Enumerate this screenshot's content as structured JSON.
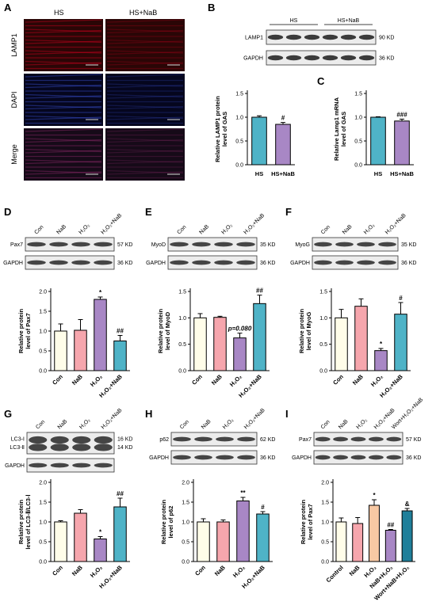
{
  "panels": {
    "A": "A",
    "B": "B",
    "C": "C",
    "D": "D",
    "E": "E",
    "F": "F",
    "G": "G",
    "H": "H",
    "I": "I"
  },
  "colors": {
    "cream": "#fffde9",
    "pink": "#f6a6ad",
    "purple": "#a887c5",
    "teal": "#4fb3c7",
    "lightorange": "#f8c9a4",
    "dteal": "#1f7f9a"
  },
  "micro": {
    "col_headers": [
      "HS",
      "HS+NaB"
    ],
    "row_labels": [
      "LAMP1",
      "DAPI",
      "Merge"
    ]
  },
  "blots": {
    "B": {
      "groups": [
        "HS",
        "HS+NaB"
      ],
      "rows": [
        "LAMP1",
        "GAPDH"
      ],
      "kd": [
        "90 KD",
        "36 KD"
      ]
    },
    "D": {
      "lanes": [
        "Con",
        "NaB",
        "H₂O₂",
        "H₂O₂+NaB"
      ],
      "rows": [
        "Pax7",
        "GAPDH"
      ],
      "kd": [
        "57 KD",
        "36 KD"
      ]
    },
    "E": {
      "lanes": [
        "Con",
        "NaB",
        "H₂O₂",
        "H₂O₂+NaB"
      ],
      "rows": [
        "MyoD",
        "GAPDH"
      ],
      "kd": [
        "35 KD",
        "36 KD"
      ]
    },
    "F": {
      "lanes": [
        "Con",
        "NaB",
        "H₂O₂",
        "H₂O₂+NaB"
      ],
      "rows": [
        "MyoG",
        "GAPDH"
      ],
      "kd": [
        "35 KD",
        "36 KD"
      ]
    },
    "G": {
      "lanes": [
        "Con",
        "NaB",
        "H₂O₂",
        "H₂O₂+NaB"
      ],
      "rows": [
        "LC3-Ⅰ",
        "LC3-Ⅱ",
        "GAPDH"
      ],
      "kd": [
        "16 KD",
        "14 KD"
      ]
    },
    "H": {
      "lanes": [
        "Con",
        "NaB",
        "H₂O₂",
        "H₂O₂+NaB"
      ],
      "rows": [
        "p62",
        "GAPDH"
      ],
      "kd": [
        "62 KD",
        "36 KD"
      ]
    },
    "I": {
      "lanes": [
        "Con",
        "NaB",
        "H₂O₂",
        "H₂O₂+NaB",
        "Wort+H₂O₂+NaB"
      ],
      "rows": [
        "Pax7",
        "GAPDH"
      ],
      "kd": [
        "57 KD",
        "36 KD"
      ]
    }
  },
  "chart_data": [
    {
      "panel": "B",
      "type": "bar",
      "categories": [
        "HS",
        "HS+NaB"
      ],
      "values": [
        1.0,
        0.85
      ],
      "errors": [
        0.03,
        0.04
      ],
      "colors": [
        "#4fb3c7",
        "#a887c5"
      ],
      "marks": [
        "",
        "#"
      ],
      "ylabel": [
        "Relative LAMP1 protein",
        "level of GAS"
      ],
      "ylim": [
        0,
        1.5
      ],
      "yticks": [
        "0.0",
        "0.5",
        "1.0",
        "1.5"
      ],
      "tick_values": [
        0,
        0.5,
        1.0,
        1.5
      ]
    },
    {
      "panel": "C",
      "type": "bar",
      "categories": [
        "HS",
        "HS+NaB"
      ],
      "values": [
        1.0,
        0.92
      ],
      "errors": [
        0.01,
        0.04
      ],
      "colors": [
        "#4fb3c7",
        "#a887c5"
      ],
      "marks": [
        "",
        "###"
      ],
      "ylabel": [
        "Relative Lamp1 mRNA",
        "level of GAS"
      ],
      "ylim": [
        0,
        1.5
      ],
      "yticks": [
        "0.0",
        "0.5",
        "1.0",
        "1.5"
      ],
      "tick_values": [
        0,
        0.5,
        1.0,
        1.5
      ]
    },
    {
      "panel": "D",
      "type": "bar",
      "categories": [
        "Con",
        "NaB",
        "H₂O₂",
        "H₂O₂+NaB"
      ],
      "values": [
        1.0,
        1.02,
        1.8,
        0.75
      ],
      "errors": [
        0.18,
        0.27,
        0.06,
        0.14
      ],
      "colors": [
        "#fffde9",
        "#f6a6ad",
        "#a887c5",
        "#4fb3c7"
      ],
      "marks": [
        "",
        "",
        "*",
        "##"
      ],
      "ylabel": [
        "Relative protein",
        "level of Pax7"
      ],
      "ylim": [
        0,
        2.0
      ],
      "yticks": [
        "0.0",
        "0.5",
        "1.0",
        "1.5",
        "2.0"
      ],
      "tick_values": [
        0,
        0.5,
        1.0,
        1.5,
        2.0
      ]
    },
    {
      "panel": "E",
      "type": "bar",
      "categories": [
        "Con",
        "NaB",
        "H₂O₂",
        "H₂O₂+NaB"
      ],
      "values": [
        1.0,
        1.01,
        0.62,
        1.27
      ],
      "errors": [
        0.08,
        0.02,
        0.09,
        0.16
      ],
      "colors": [
        "#fffde9",
        "#f6a6ad",
        "#a887c5",
        "#4fb3c7"
      ],
      "marks": [
        "",
        "",
        "p=0.080",
        "##"
      ],
      "ylabel": [
        "Relative protein",
        "level of MyoD"
      ],
      "ylim": [
        0,
        1.5
      ],
      "yticks": [
        "0.0",
        "0.5",
        "1.0",
        "1.5"
      ],
      "tick_values": [
        0,
        0.5,
        1.0,
        1.5
      ]
    },
    {
      "panel": "F",
      "type": "bar",
      "categories": [
        "Con",
        "NaB",
        "H₂O₂",
        "H₂O₂+NaB"
      ],
      "values": [
        1.0,
        1.22,
        0.38,
        1.07
      ],
      "errors": [
        0.16,
        0.14,
        0.04,
        0.22
      ],
      "colors": [
        "#fffde9",
        "#f6a6ad",
        "#a887c5",
        "#4fb3c7"
      ],
      "marks": [
        "",
        "",
        "*",
        "#"
      ],
      "ylabel": [
        "Relative protein",
        "level of MyoG"
      ],
      "ylim": [
        0,
        1.5
      ],
      "yticks": [
        "0.0",
        "0.5",
        "1.0",
        "1.5"
      ],
      "tick_values": [
        0,
        0.5,
        1.0,
        1.5
      ]
    },
    {
      "panel": "G",
      "type": "bar",
      "categories": [
        "Con",
        "NaB",
        "H₂O₂",
        "H₂O₂+NaB"
      ],
      "values": [
        1.0,
        1.22,
        0.57,
        1.38
      ],
      "errors": [
        0.03,
        0.09,
        0.06,
        0.22
      ],
      "colors": [
        "#fffde9",
        "#f6a6ad",
        "#a887c5",
        "#4fb3c7"
      ],
      "marks": [
        "",
        "",
        "*",
        "##"
      ],
      "ylabel": [
        "Relative protein",
        "level of LC3-Ⅱ/LC3-Ⅰ"
      ],
      "ylim": [
        0,
        2.0
      ],
      "yticks": [
        "0.0",
        "0.5",
        "1.0",
        "1.5",
        "2.0"
      ],
      "tick_values": [
        0,
        0.5,
        1.0,
        1.5,
        2.0
      ]
    },
    {
      "panel": "H",
      "type": "bar",
      "categories": [
        "Con",
        "NaB",
        "H₂O₂",
        "H₂O₂+NaB"
      ],
      "values": [
        1.0,
        1.0,
        1.53,
        1.2
      ],
      "errors": [
        0.08,
        0.05,
        0.09,
        0.06
      ],
      "colors": [
        "#fffde9",
        "#f6a6ad",
        "#a887c5",
        "#4fb3c7"
      ],
      "marks": [
        "",
        "",
        "**",
        "#"
      ],
      "ylabel": [
        "Relative protein",
        "level of p62"
      ],
      "ylim": [
        0,
        2.0
      ],
      "yticks": [
        "0.0",
        "0.5",
        "1.0",
        "1.5",
        "2.0"
      ],
      "tick_values": [
        0,
        0.5,
        1.0,
        1.5,
        2.0
      ]
    },
    {
      "panel": "I",
      "type": "bar",
      "categories": [
        "Control",
        "NaB",
        "H₂O₂",
        "NaB+H₂O₂",
        "Wort+NaB+H₂O₂"
      ],
      "values": [
        1.0,
        0.96,
        1.42,
        0.79,
        1.28
      ],
      "errors": [
        0.1,
        0.15,
        0.14,
        0.02,
        0.06
      ],
      "colors": [
        "#fffde9",
        "#f6a6ad",
        "#f8c9a4",
        "#a887c5",
        "#1f7f9a"
      ],
      "marks": [
        "",
        "",
        "*",
        "##",
        "&"
      ],
      "ylabel": [
        "Relative protein",
        "level of Pax7"
      ],
      "ylim": [
        0,
        2.0
      ],
      "yticks": [
        "0.0",
        "0.5",
        "1.0",
        "1.5",
        "2.0"
      ],
      "tick_values": [
        0,
        0.5,
        1.0,
        1.5,
        2.0
      ]
    }
  ]
}
